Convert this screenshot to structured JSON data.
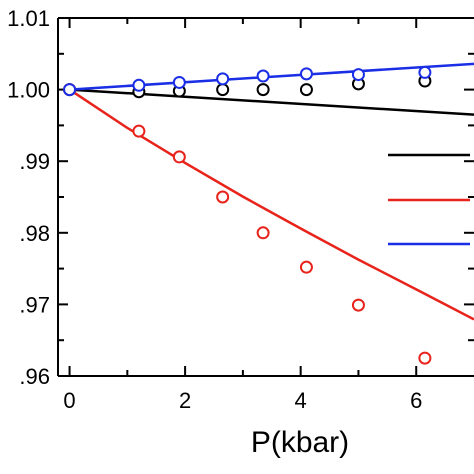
{
  "chart_data": {
    "type": "scatter",
    "title": "",
    "xlabel": "P(kbar)",
    "ylabel": "",
    "xlim": [
      -0.2,
      7.0
    ],
    "ylim": [
      0.96,
      1.01
    ],
    "x_ticks": [
      0,
      2,
      4,
      6
    ],
    "x_tick_labels": [
      "0",
      "2",
      "4",
      "6"
    ],
    "y_ticks": [
      0.96,
      0.97,
      0.98,
      0.99,
      1.0,
      1.01
    ],
    "y_tick_labels": [
      ".96",
      ".97",
      ".98",
      ".99",
      "1.00",
      "1.01"
    ],
    "grid": false,
    "legend": "right",
    "series": [
      {
        "color": "#000000",
        "line": {
          "x": [
            0,
            7.0
          ],
          "y": [
            1.0,
            0.9965
          ]
        },
        "points": {
          "x": [
            0,
            1.2,
            1.9,
            2.65,
            3.35,
            4.1,
            5.0,
            6.15
          ],
          "y": [
            1.0,
            0.9997,
            0.9998,
            1.0,
            1.0,
            1.0,
            1.0008,
            1.0012
          ]
        }
      },
      {
        "color": "#e8231b",
        "line": {
          "x": [
            0,
            1,
            2,
            3,
            4,
            5,
            6,
            7.0
          ],
          "y": [
            1.0,
            0.99465,
            0.98975,
            0.98505,
            0.9806,
            0.97625,
            0.9721,
            0.9679
          ]
        },
        "points": {
          "x": [
            0,
            1.2,
            1.9,
            2.65,
            3.35,
            4.1,
            5.0,
            6.15
          ],
          "y": [
            1.0,
            0.9942,
            0.9906,
            0.985,
            0.98,
            0.9752,
            0.9699,
            0.9625
          ]
        }
      },
      {
        "color": "#1a2ee6",
        "line": {
          "x": [
            0,
            7.0
          ],
          "y": [
            1.0,
            1.0036
          ]
        },
        "points": {
          "x": [
            0,
            1.2,
            1.9,
            2.65,
            3.35,
            4.1,
            5.0,
            6.15
          ],
          "y": [
            1.0,
            1.0006,
            1.001,
            1.0015,
            1.0019,
            1.0022,
            1.0021,
            1.0024
          ]
        }
      }
    ]
  }
}
